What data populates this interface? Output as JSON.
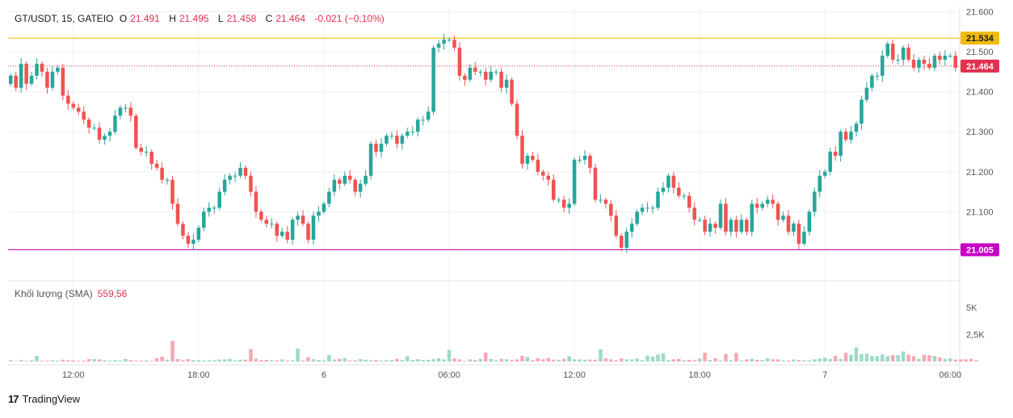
{
  "header": {
    "symbol": "GT/USDT, 15, GATEIO",
    "open_label": "O",
    "open": "21.491",
    "high_label": "H",
    "high": "21.495",
    "low_label": "L",
    "low": "21.458",
    "close_label": "C",
    "close": "21.464",
    "change": "-0.021 (−0,10%)"
  },
  "volume_header": {
    "label": "Khối lượng (SMA)",
    "value": "559,56"
  },
  "branding": {
    "logo": "17",
    "name": "TradingView"
  },
  "price_labels": {
    "resistance": "21.534",
    "current": "21.464",
    "support": "21.005"
  },
  "colors": {
    "up": "#26a69a",
    "down": "#ef5350",
    "vol_up": "#9ed9c9",
    "vol_down": "#f7a8b4",
    "resistance": "#f0b90b",
    "support": "#c600c6",
    "current": "#e0314f",
    "grid": "#eef0f3"
  },
  "chart_data": {
    "type": "candlestick",
    "y_axis": {
      "ticks": [
        "21.600",
        "21.500",
        "21.400",
        "21.300",
        "21.200",
        "21.100"
      ],
      "range": [
        20.96,
        21.61
      ]
    },
    "volume_axis": {
      "ticks": [
        "5K",
        "2,5K"
      ]
    },
    "x_axis": {
      "ticks": [
        "12:00",
        "18:00",
        "6",
        "06:00",
        "12:00",
        "18:00",
        "7",
        "06:00"
      ]
    },
    "horizontal_lines": [
      {
        "name": "resistance",
        "value": 21.534
      },
      {
        "name": "support",
        "value": 21.005
      },
      {
        "name": "last_price",
        "value": 21.464,
        "style": "dotted"
      }
    ],
    "series": [
      {
        "name": "price",
        "closes": [
          21.44,
          21.41,
          21.47,
          21.42,
          21.44,
          21.47,
          21.45,
          21.41,
          21.45,
          21.46,
          21.39,
          21.37,
          21.36,
          21.35,
          21.33,
          21.31,
          21.31,
          21.28,
          21.29,
          21.3,
          21.34,
          21.36,
          21.36,
          21.34,
          21.26,
          21.25,
          21.25,
          21.22,
          21.21,
          21.18,
          21.18,
          21.12,
          21.07,
          21.04,
          21.02,
          21.03,
          21.06,
          21.1,
          21.11,
          21.11,
          21.15,
          21.18,
          21.19,
          21.19,
          21.21,
          21.19,
          21.15,
          21.1,
          21.08,
          21.07,
          21.07,
          21.04,
          21.05,
          21.03,
          21.08,
          21.09,
          21.07,
          21.03,
          21.09,
          21.1,
          21.12,
          21.15,
          21.18,
          21.17,
          21.19,
          21.18,
          21.15,
          21.17,
          21.19,
          21.27,
          21.25,
          21.27,
          21.29,
          21.29,
          21.27,
          21.29,
          21.3,
          21.3,
          21.33,
          21.33,
          21.35,
          21.51,
          21.52,
          21.53,
          21.53,
          21.51,
          21.44,
          21.43,
          21.46,
          21.45,
          21.45,
          21.43,
          21.45,
          21.45,
          21.41,
          21.43,
          21.37,
          21.29,
          21.22,
          21.24,
          21.23,
          21.2,
          21.19,
          21.18,
          21.13,
          21.13,
          21.11,
          21.12,
          21.23,
          21.23,
          21.24,
          21.21,
          21.13,
          21.13,
          21.12,
          21.09,
          21.04,
          21.01,
          21.05,
          21.07,
          21.1,
          21.11,
          21.11,
          21.11,
          21.15,
          21.16,
          21.19,
          21.16,
          21.14,
          21.14,
          21.11,
          21.08,
          21.08,
          21.05,
          21.07,
          21.06,
          21.12,
          21.05,
          21.08,
          21.05,
          21.08,
          21.05,
          21.12,
          21.11,
          21.12,
          21.13,
          21.12,
          21.08,
          21.09,
          21.05,
          21.07,
          21.02,
          21.05,
          21.1,
          21.15,
          21.19,
          21.2,
          21.25,
          21.24,
          21.3,
          21.28,
          21.3,
          21.32,
          21.38,
          21.41,
          21.44,
          21.44,
          21.49,
          21.52,
          21.48,
          21.48,
          21.51,
          21.48,
          21.46,
          21.48,
          21.47,
          21.46,
          21.49,
          21.48,
          21.49,
          21.49,
          21.46
        ]
      },
      {
        "name": "volume",
        "values": [
          130,
          40,
          140,
          60,
          110,
          520,
          70,
          80,
          120,
          90,
          170,
          130,
          110,
          60,
          90,
          230,
          220,
          200,
          130,
          90,
          130,
          100,
          230,
          130,
          80,
          90,
          110,
          70,
          300,
          440,
          180,
          1900,
          220,
          120,
          220,
          130,
          130,
          100,
          130,
          110,
          180,
          200,
          230,
          110,
          170,
          170,
          1150,
          260,
          130,
          150,
          130,
          110,
          200,
          100,
          110,
          1200,
          100,
          400,
          210,
          130,
          110,
          600,
          180,
          250,
          320,
          100,
          110,
          220,
          170,
          110,
          140,
          90,
          130,
          150,
          260,
          140,
          480,
          150,
          210,
          140,
          150,
          230,
          300,
          200,
          1070,
          280,
          200,
          60,
          200,
          130,
          260,
          840,
          230,
          110,
          250,
          210,
          140,
          200,
          520,
          420,
          130,
          300,
          200,
          320,
          170,
          160,
          250,
          490,
          200,
          190,
          170,
          180,
          170,
          1130,
          290,
          200,
          110,
          290,
          190,
          200,
          280,
          130,
          540,
          450,
          650,
          750,
          130,
          210,
          250,
          110,
          160,
          120,
          270,
          820,
          140,
          300,
          100,
          700,
          130,
          800,
          100,
          200,
          250,
          160,
          140,
          300,
          200,
          200,
          110,
          100,
          190,
          140,
          110,
          110,
          200,
          260,
          340,
          240,
          520,
          240,
          800,
          620,
          1300,
          680,
          720,
          520,
          480,
          660,
          500,
          590,
          590,
          930,
          640,
          490,
          260,
          620,
          580,
          520,
          380,
          240,
          290,
          180,
          200,
          210,
          240,
          110
        ]
      }
    ]
  }
}
